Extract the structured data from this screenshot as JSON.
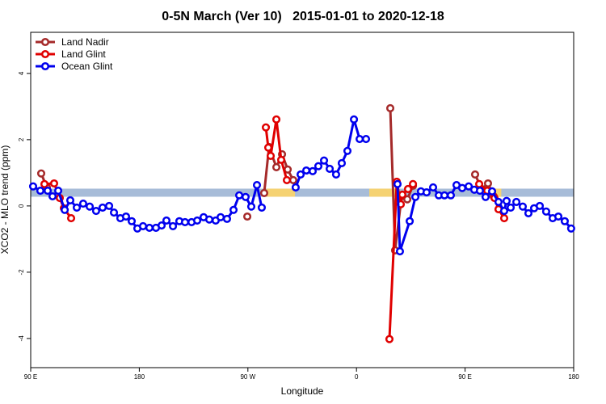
{
  "chart_data": {
    "type": "line",
    "title": "0-5N March (Ver 10)   2015-01-01 to 2020-12-18",
    "xlabel": "Longitude",
    "ylabel": "XCO2 - MLO trend (ppm)",
    "xlim": [
      90,
      540
    ],
    "ylim": [
      -4.88,
      5.24
    ],
    "xticks": [
      {
        "value": 90,
        "label": "90 E"
      },
      180,
      {
        "value": 270,
        "label": "90 W"
      },
      {
        "value": 360,
        "label": "0"
      },
      {
        "value": 450,
        "label": "90 E"
      },
      {
        "value": 540,
        "label": "180"
      }
    ],
    "yticks": [
      -4,
      -2,
      0,
      2,
      4
    ],
    "legend": "top-left",
    "band": {
      "y": 0.4,
      "segments": [
        {
          "from": 90,
          "to": 540,
          "color": "#a7bcd8"
        },
        {
          "from": 285.6,
          "to": 309,
          "color": "#f5d272"
        },
        {
          "from": 370.6,
          "to": 392.7,
          "color": "#f5d272"
        },
        {
          "from": 473,
          "to": 480,
          "color": "#f5d272"
        }
      ]
    },
    "series": [
      {
        "name": "Land Nadir",
        "color": "#a52a2a",
        "x": [
          98.7,
          103.4,
          null,
          269.5,
          null,
          283.5,
          287.5,
          293.6,
          298.3,
          303.0,
          307.6,
          null,
          388.0,
          392.0,
          397.4,
          402.1,
          406.8,
          null,
          458.3,
          463.7,
          469.0,
          473.7
        ],
        "values": [
          0.98,
          0.56,
          null,
          -0.32,
          null,
          0.39,
          1.78,
          1.17,
          1.56,
          1.1,
          0.78,
          null,
          2.95,
          -1.34,
          0.29,
          0.2,
          0.61,
          null,
          0.95,
          0.51,
          0.68,
          0.29
        ]
      },
      {
        "name": "Land Glint",
        "color": "#e00000",
        "x": [
          101.4,
          109.4,
          114.1,
          117.5,
          123.5,
          null,
          284.9,
          286.9,
          288.9,
          293.6,
          297.6,
          302.3,
          null,
          387.3,
          393.4,
          396.7,
          398.0,
          402.7,
          406.8,
          null,
          461.7,
          468.4,
          474.4,
          477.7,
          482.4
        ],
        "values": [
          0.66,
          0.68,
          0.24,
          -0.07,
          -0.37,
          null,
          2.37,
          1.76,
          1.51,
          2.61,
          1.39,
          0.78,
          null,
          -4.02,
          0.73,
          0.05,
          0.34,
          0.51,
          0.66,
          null,
          0.66,
          0.46,
          0.24,
          -0.1,
          -0.37
        ]
      },
      {
        "name": "Ocean Glint",
        "color": "#0000ee",
        "x": [
          92.0,
          98.0,
          104.1,
          108.1,
          112.8,
          118.2,
          122.8,
          128.2,
          133.5,
          138.9,
          144.2,
          149.6,
          155.0,
          159.0,
          164.3,
          169.0,
          173.7,
          178.4,
          183.1,
          188.4,
          193.8,
          198.5,
          202.5,
          207.9,
          213.2,
          217.9,
          223.3,
          228.0,
          233.3,
          238.0,
          243.3,
          247.4,
          252.7,
          258.1,
          262.8,
          268.1,
          272.8,
          277.5,
          281.5,
          null,
          309.6,
          313.7,
          318.4,
          323.7,
          328.4,
          333.1,
          337.8,
          343.1,
          347.8,
          352.5,
          357.9,
          362.6,
          367.9,
          null,
          394.0,
          396.0,
          404.1,
          408.8,
          413.4,
          418.1,
          423.5,
          428.2,
          432.9,
          438.2,
          442.9,
          447.6,
          453.0,
          457.6,
          462.3,
          467.0,
          472.4,
          477.7,
          482.4,
          484.4,
          487.8,
          492.5,
          497.8,
          502.5,
          507.2,
          511.9,
          517.2,
          522.6,
          527.3,
          532.6,
          537.9
        ],
        "values": [
          0.59,
          0.46,
          0.46,
          0.29,
          0.46,
          -0.12,
          0.17,
          -0.05,
          0.07,
          -0.02,
          -0.15,
          -0.05,
          0.0,
          -0.2,
          -0.37,
          -0.32,
          -0.46,
          -0.68,
          -0.61,
          -0.66,
          -0.66,
          -0.59,
          -0.44,
          -0.61,
          -0.46,
          -0.49,
          -0.49,
          -0.44,
          -0.34,
          -0.41,
          -0.44,
          -0.34,
          -0.39,
          -0.12,
          0.32,
          0.27,
          -0.02,
          0.63,
          -0.05,
          null,
          0.56,
          0.95,
          1.07,
          1.05,
          1.2,
          1.37,
          1.12,
          0.95,
          1.29,
          1.66,
          2.61,
          2.02,
          2.02,
          null,
          0.66,
          -1.37,
          -0.46,
          0.27,
          0.44,
          0.41,
          0.56,
          0.32,
          0.32,
          0.32,
          0.63,
          0.54,
          0.59,
          0.49,
          0.46,
          0.27,
          0.44,
          0.12,
          -0.15,
          0.15,
          -0.05,
          0.12,
          -0.02,
          -0.22,
          -0.07,
          0.0,
          -0.17,
          -0.37,
          -0.32,
          -0.46,
          -0.68
        ]
      }
    ]
  }
}
